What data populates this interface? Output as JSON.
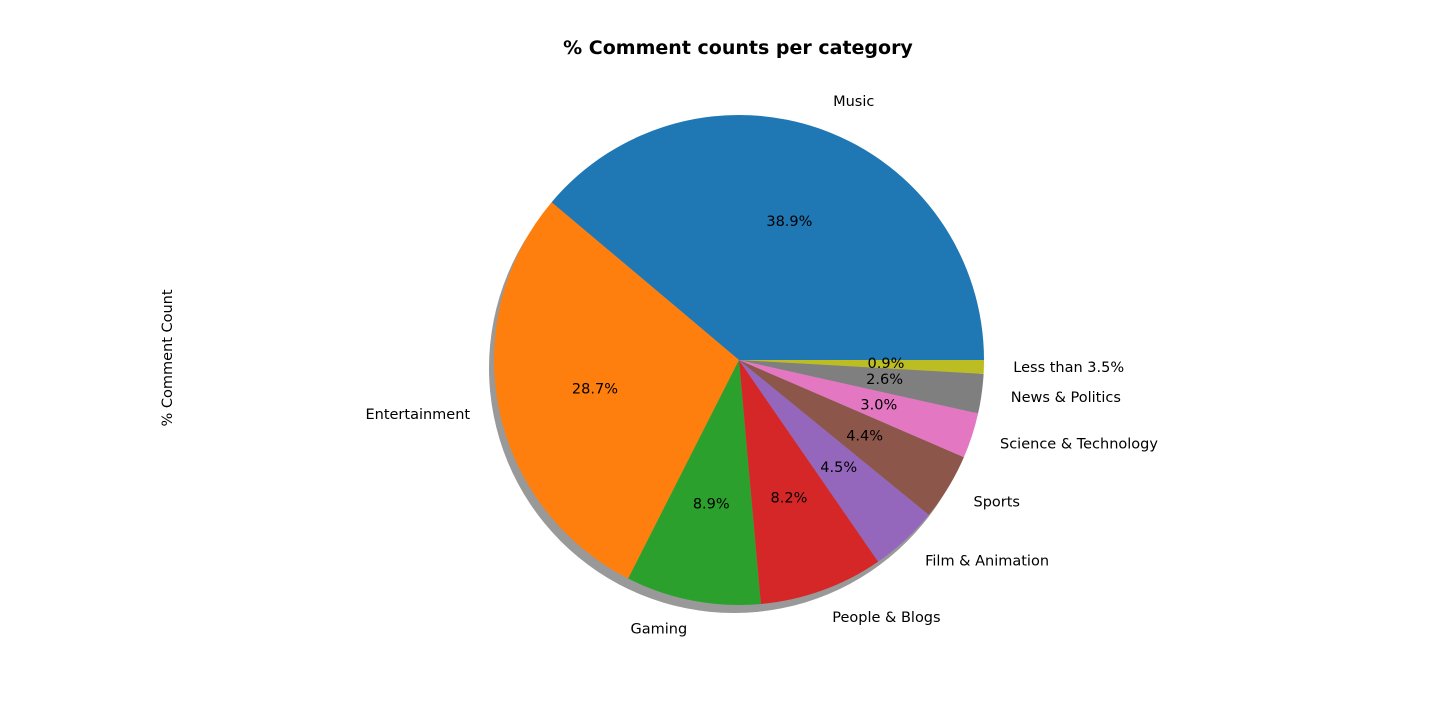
{
  "chart_data": {
    "type": "pie",
    "title": "% Comment counts per category",
    "ylabel": "% Comment Count",
    "xlabel": "",
    "shadow": true,
    "start_angle_deg": 0,
    "direction": "counterclockwise",
    "slices": [
      {
        "label": "Music",
        "value": 38.9,
        "pct_label": "38.9%",
        "color": "#1f77b4"
      },
      {
        "label": "Entertainment",
        "value": 28.7,
        "pct_label": "28.7%",
        "color": "#ff7f0e"
      },
      {
        "label": "Gaming",
        "value": 8.9,
        "pct_label": "8.9%",
        "color": "#2ca02c"
      },
      {
        "label": "People & Blogs",
        "value": 8.2,
        "pct_label": "8.2%",
        "color": "#d62728"
      },
      {
        "label": "Film & Animation",
        "value": 4.5,
        "pct_label": "4.5%",
        "color": "#9467bd"
      },
      {
        "label": "Sports",
        "value": 4.4,
        "pct_label": "4.4%",
        "color": "#8c564b"
      },
      {
        "label": "Science & Technology",
        "value": 3.0,
        "pct_label": "3.0%",
        "color": "#e377c2"
      },
      {
        "label": "News & Politics",
        "value": 2.6,
        "pct_label": "2.6%",
        "color": "#7f7f7f"
      },
      {
        "label": "Less than 3.5%",
        "value": 0.9,
        "pct_label": "0.9%",
        "color": "#bcbd22"
      }
    ]
  }
}
